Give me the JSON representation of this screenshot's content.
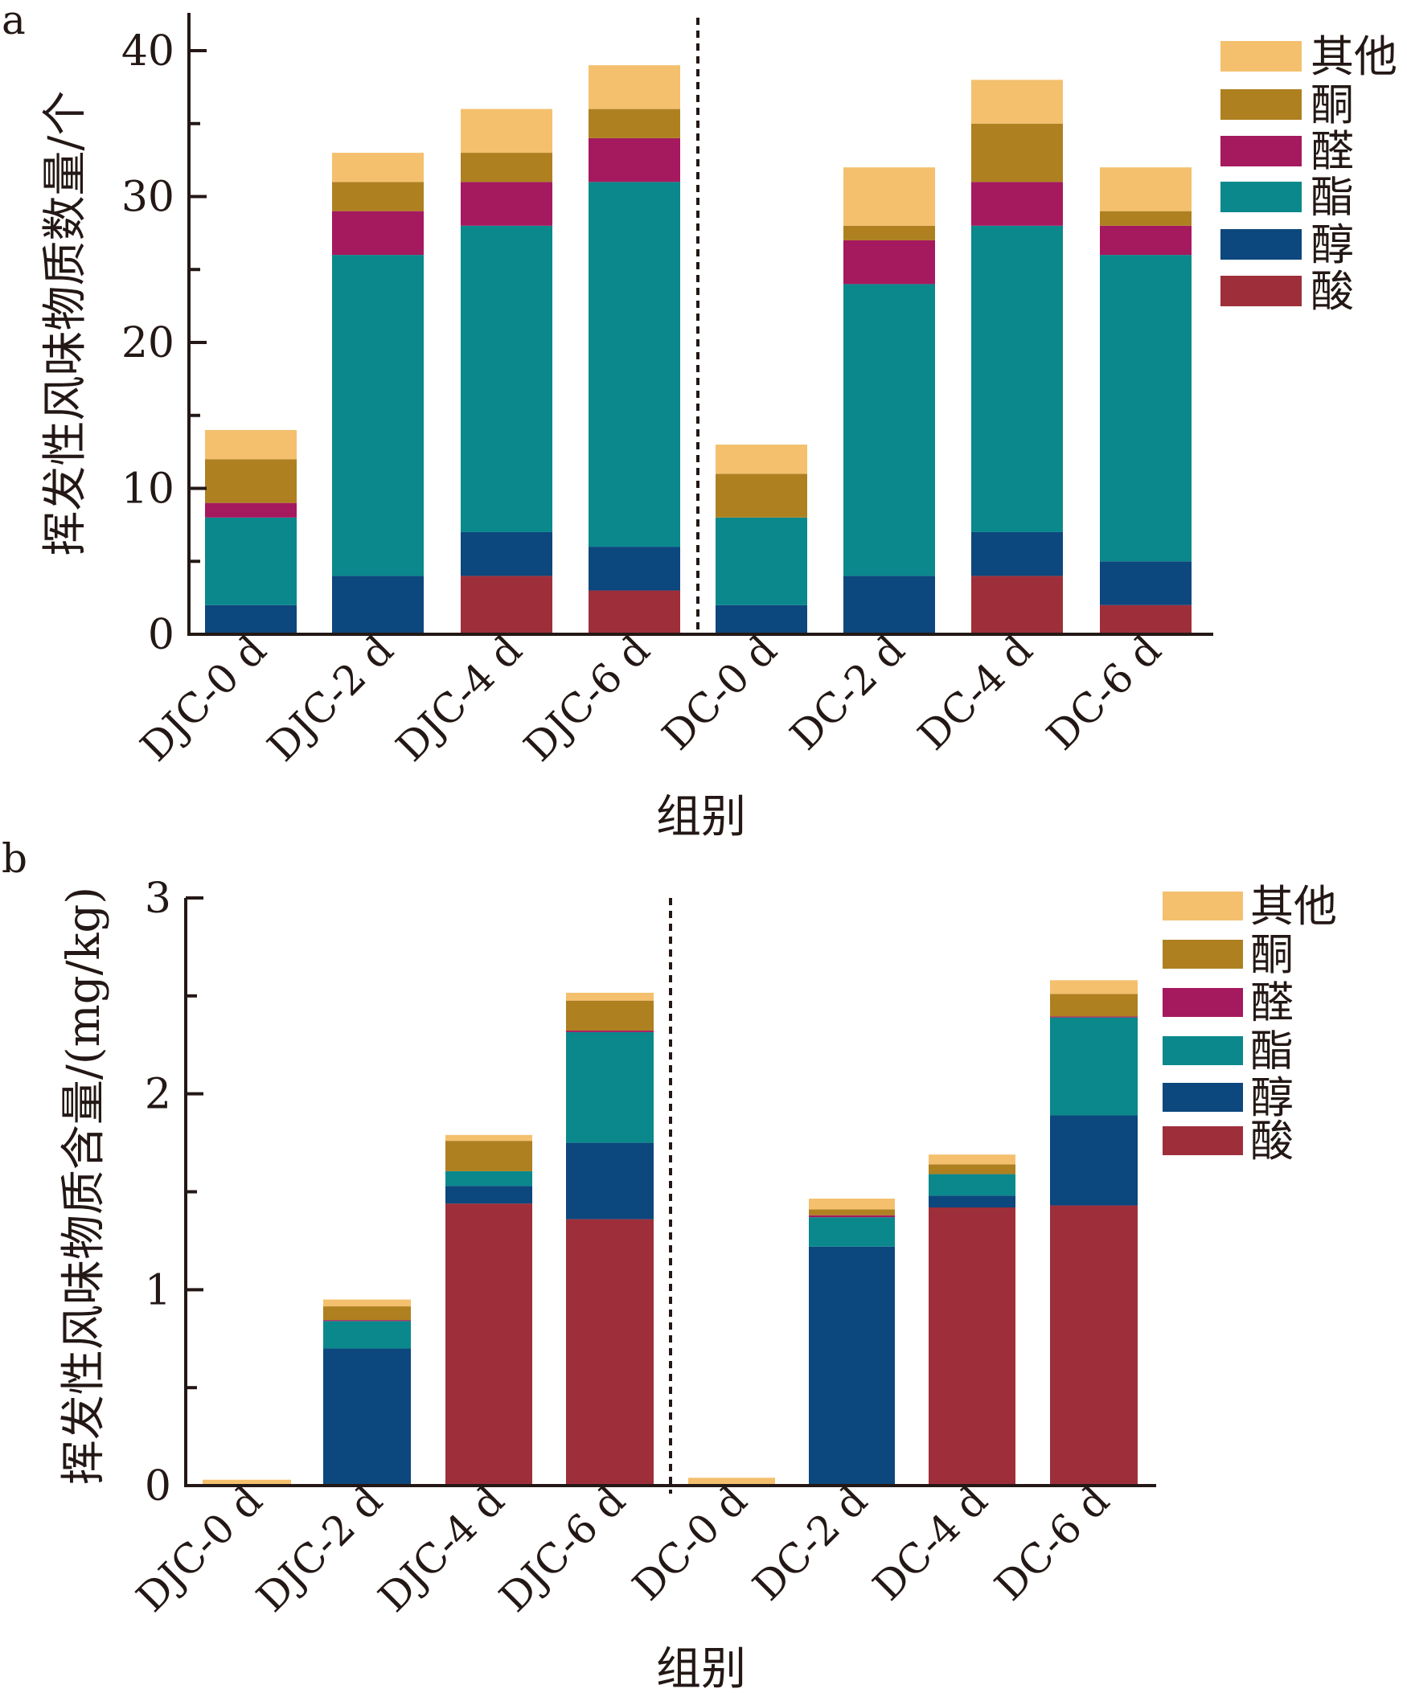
{
  "chart_data": [
    {
      "panel": "a",
      "type": "bar",
      "stacked": true,
      "title": "",
      "xlabel": "组别",
      "ylabel": "挥发性风味物质数量/个",
      "ylim": [
        0,
        42
      ],
      "yticks": [
        0,
        10,
        20,
        30,
        40
      ],
      "yticks_minor": [
        5,
        15,
        25,
        35
      ],
      "grid": false,
      "legend_position": "top-right",
      "group_divider_after_index": 3,
      "categories": [
        "DJC-0 d",
        "DJC-2 d",
        "DJC-4 d",
        "DJC-6 d",
        "DC-0 d",
        "DC-2 d",
        "DC-4 d",
        "DC-6 d"
      ],
      "series": [
        {
          "name": "酸",
          "color": "#9E2F3A",
          "values": [
            0,
            0,
            4,
            3,
            0,
            0,
            4,
            2
          ]
        },
        {
          "name": "醇",
          "color": "#0C477D",
          "values": [
            2,
            4,
            3,
            3,
            2,
            4,
            3,
            3
          ]
        },
        {
          "name": "酯",
          "color": "#0A888C",
          "values": [
            6,
            22,
            21,
            25,
            6,
            20,
            21,
            21
          ]
        },
        {
          "name": "醛",
          "color": "#A5195F",
          "values": [
            1,
            3,
            3,
            3,
            0,
            3,
            3,
            2
          ]
        },
        {
          "name": "酮",
          "color": "#AE8020",
          "values": [
            3,
            2,
            2,
            2,
            3,
            1,
            4,
            1
          ]
        },
        {
          "name": "其他",
          "color": "#F4C06E",
          "values": [
            2,
            2,
            3,
            3,
            2,
            4,
            3,
            3
          ]
        }
      ],
      "legend_order": [
        "其他",
        "酮",
        "醛",
        "酯",
        "醇",
        "酸"
      ]
    },
    {
      "panel": "b",
      "type": "bar",
      "stacked": true,
      "title": "",
      "xlabel": "组别",
      "ylabel": "挥发性风味物质含量/(mg/kg)",
      "ylim": [
        0,
        3
      ],
      "yticks": [
        0,
        1,
        2,
        3
      ],
      "yticks_minor": [
        0.5,
        1.5,
        2.5
      ],
      "grid": false,
      "legend_position": "top-right",
      "group_divider_after_index": 3,
      "categories": [
        "DJC-0 d",
        "DJC-2 d",
        "DJC-4 d",
        "DJC-6 d",
        "DC-0 d",
        "DC-2 d",
        "DC-4 d",
        "DC-6 d"
      ],
      "series": [
        {
          "name": "酸",
          "color": "#9E2F3A",
          "values": [
            0,
            0,
            1.44,
            1.36,
            0,
            0,
            1.42,
            1.43
          ]
        },
        {
          "name": "醇",
          "color": "#0C477D",
          "values": [
            0,
            0.7,
            0.09,
            0.39,
            0,
            1.22,
            0.06,
            0.46
          ]
        },
        {
          "name": "酯",
          "color": "#0A888C",
          "values": [
            0,
            0.14,
            0.075,
            0.565,
            0,
            0.15,
            0.11,
            0.5
          ]
        },
        {
          "name": "醛",
          "color": "#A5195F",
          "values": [
            0,
            0.005,
            0,
            0.008,
            0,
            0.01,
            0,
            0.005
          ]
        },
        {
          "name": "酮",
          "color": "#AE8020",
          "values": [
            0,
            0.07,
            0.155,
            0.153,
            0,
            0.03,
            0.05,
            0.115
          ]
        },
        {
          "name": "其他",
          "color": "#F4C06E",
          "values": [
            0.03,
            0.035,
            0.03,
            0.04,
            0.04,
            0.055,
            0.05,
            0.07
          ]
        }
      ],
      "legend_order": [
        "其他",
        "酮",
        "醛",
        "酯",
        "醇",
        "酸"
      ]
    }
  ],
  "panels": {
    "a": {
      "letter": "a"
    },
    "b": {
      "letter": "b"
    }
  }
}
